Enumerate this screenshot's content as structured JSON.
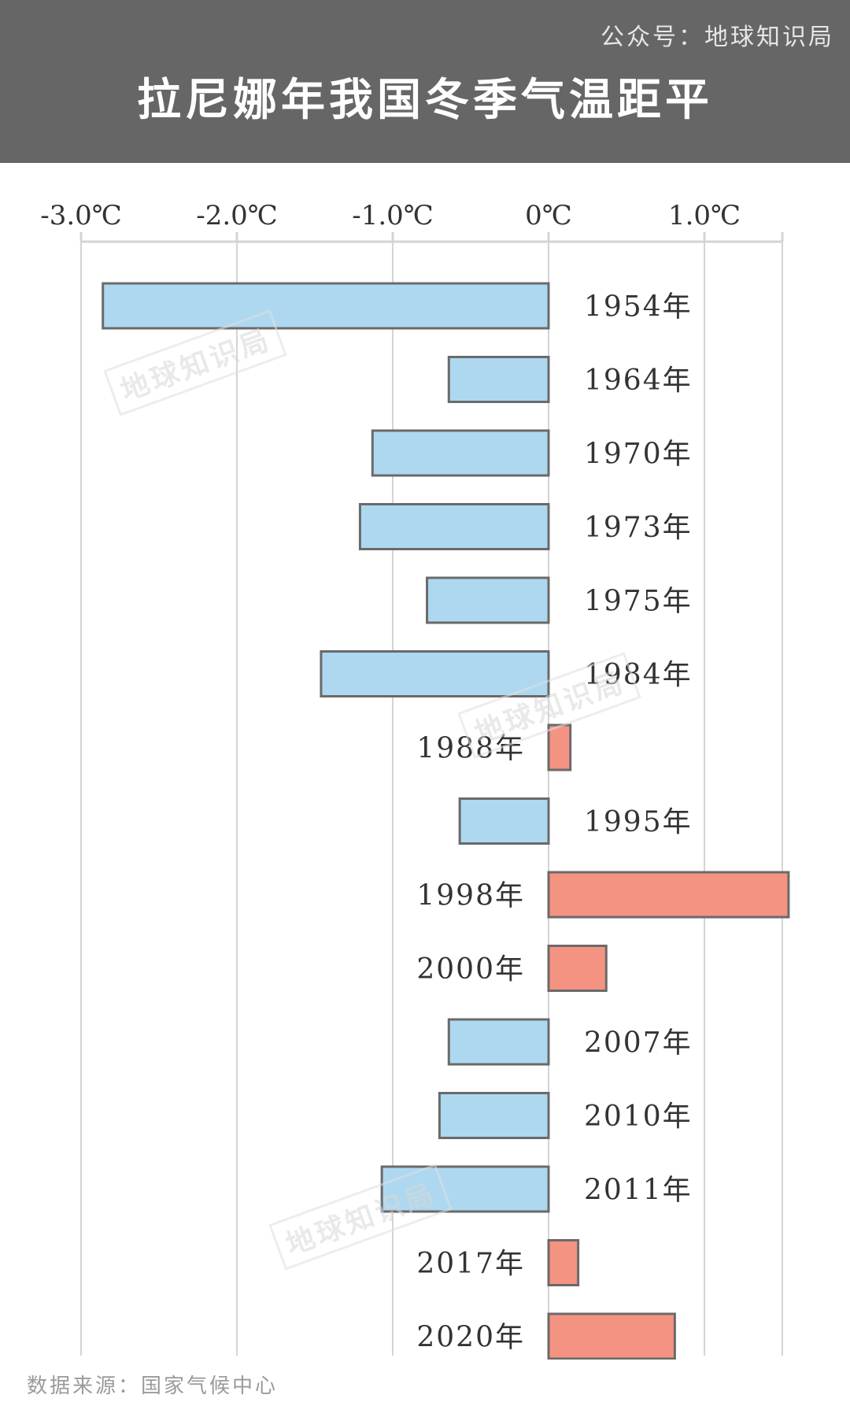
{
  "header": {
    "account": "公众号：地球知识局",
    "title": "拉尼娜年我国冬季气温距平"
  },
  "watermark_text": "地球知识局",
  "source": "数据来源：国家气候中心",
  "chart_data": {
    "type": "bar",
    "orientation": "horizontal",
    "title": "拉尼娜年我国冬季气温距平",
    "xlim": [
      -3.0,
      1.5
    ],
    "ticks": [
      {
        "value": -3.0,
        "label": "-3.0℃"
      },
      {
        "value": -2.0,
        "label": "-2.0℃"
      },
      {
        "value": -1.0,
        "label": "-1.0℃"
      },
      {
        "value": 0.0,
        "label": "0℃"
      },
      {
        "value": 1.0,
        "label": "1.0℃"
      },
      {
        "value": 1.5,
        "label": ""
      }
    ],
    "categories": [
      "1954年",
      "1964年",
      "1970年",
      "1973年",
      "1975年",
      "1984年",
      "1988年",
      "1995年",
      "1998年",
      "2000年",
      "2007年",
      "2010年",
      "2011年",
      "2017年",
      "2020年"
    ],
    "values": [
      -2.86,
      -0.64,
      -1.13,
      -1.21,
      -0.78,
      -1.46,
      0.14,
      -0.57,
      1.54,
      0.37,
      -0.64,
      -0.7,
      -1.07,
      0.19,
      0.81
    ],
    "colors": {
      "negative": "#add8f0",
      "positive": "#f59382",
      "outline": "#6a6a6a",
      "grid": "#d4d4d4"
    },
    "grid": true
  }
}
